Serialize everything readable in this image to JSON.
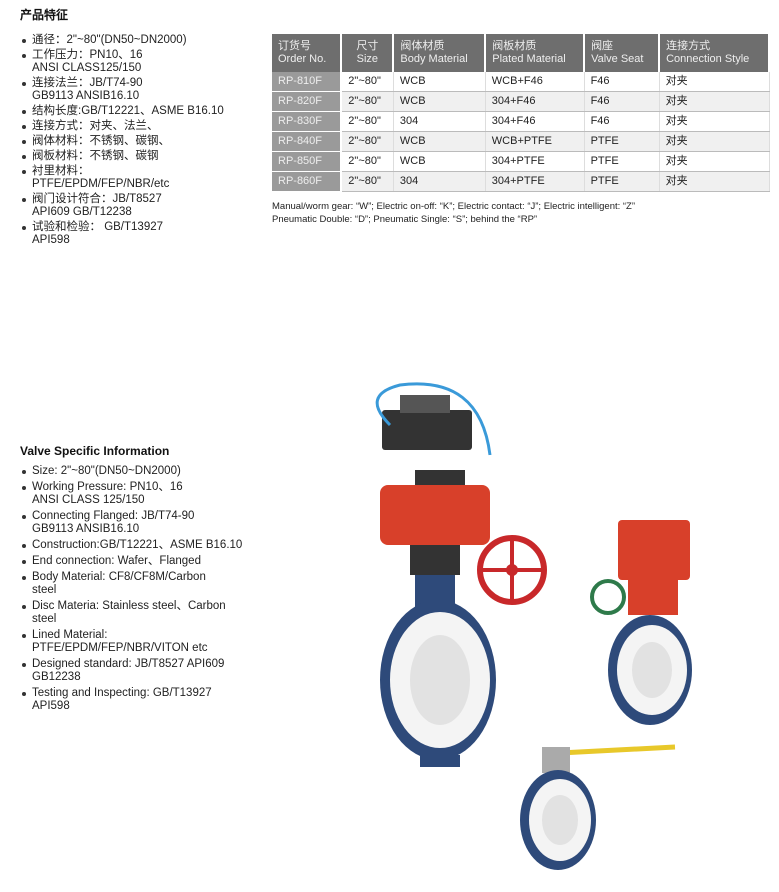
{
  "cn_section": {
    "title": "产品特征",
    "items": [
      [
        "通径：2\"~80\"(DN50~DN2000)"
      ],
      [
        "工作压力：PN10、16",
        "ANSI CLASS125/150"
      ],
      [
        "连接法兰：JB/T74-90",
        "GB9113  ANSIB16.10"
      ],
      [
        "结构长度:GB/T12221、ASME B16.10"
      ],
      [
        "连接方式：对夹、法兰、"
      ],
      [
        "阀体材料：不锈钢、碳钢、"
      ],
      [
        "阀板材料：不锈钢、碳钢"
      ],
      [
        "衬里材料：",
        "PTFE/EPDM/FEP/NBR/etc"
      ],
      [
        "阀门设计符合：JB/T8527",
        "API609  GB/T12238"
      ],
      [
        "试验和检验： GB/T13927",
        "API598"
      ]
    ]
  },
  "table": {
    "headers": [
      [
        "订货号",
        "Order No."
      ],
      [
        "尺寸",
        "Size"
      ],
      [
        "阀体材质",
        "Body Material"
      ],
      [
        "阀板材质",
        "Plated Material"
      ],
      [
        "阀座",
        "Valve Seat"
      ],
      [
        "连接方式",
        "Connection Style"
      ]
    ],
    "rows": [
      [
        "RP-810F",
        "2\"~80\"",
        "WCB",
        "WCB+F46",
        "F46",
        "对夹"
      ],
      [
        "RP-820F",
        "2\"~80\"",
        "WCB",
        "304+F46",
        "F46",
        "对夹"
      ],
      [
        "RP-830F",
        "2\"~80\"",
        "304",
        "304+F46",
        "F46",
        "对夹"
      ],
      [
        "RP-840F",
        "2\"~80\"",
        "WCB",
        "WCB+PTFE",
        "PTFE",
        "对夹"
      ],
      [
        "RP-850F",
        "2\"~80\"",
        "WCB",
        "304+PTFE",
        "PTFE",
        "对夹"
      ],
      [
        "RP-860F",
        "2\"~80\"",
        "304",
        "304+PTFE",
        "PTFE",
        "对夹"
      ]
    ]
  },
  "note": [
    "Manual/worm gear: “W”; Electric on-off: “K”; Electric contact: “J”; Electric intelligent: “Z”",
    "Pneumatic Double: “D”; Pneumatic Single: “S”; behind the “RP”"
  ],
  "en_section": {
    "title": "Valve Specific Information",
    "items": [
      [
        "Size: 2\"~80\"(DN50~DN2000)"
      ],
      [
        "Working Pressure: PN10、16",
        "ANSI CLASS 125/150"
      ],
      [
        "Connecting Flanged: JB/T74-90",
        "GB9113  ANSIB16.10"
      ],
      [
        "Construction:GB/T12221、ASME B16.10"
      ],
      [
        "End connection: Wafer、Flanged"
      ],
      [
        "Body Material: CF8/CF8M/Carbon",
        "steel"
      ],
      [
        "Disc Materia: Stainless steel、Carbon",
        "steel"
      ],
      [
        "Lined Material:",
        "PTFE/EPDM/FEP/NBR/VITON etc"
      ],
      [
        "Designed standard: JB/T8527 API609",
        "GB12238"
      ],
      [
        "Testing and Inspecting: GB/T13927",
        "API598"
      ]
    ]
  },
  "colors": {
    "header_bg": "#6e6e6e",
    "order_col_bg": "#9a9a9a",
    "valve_body": "#2e4a7a",
    "actuator_red": "#d8402a",
    "handwheel_red": "#c8282a",
    "liner_white": "#f4f4f4"
  }
}
